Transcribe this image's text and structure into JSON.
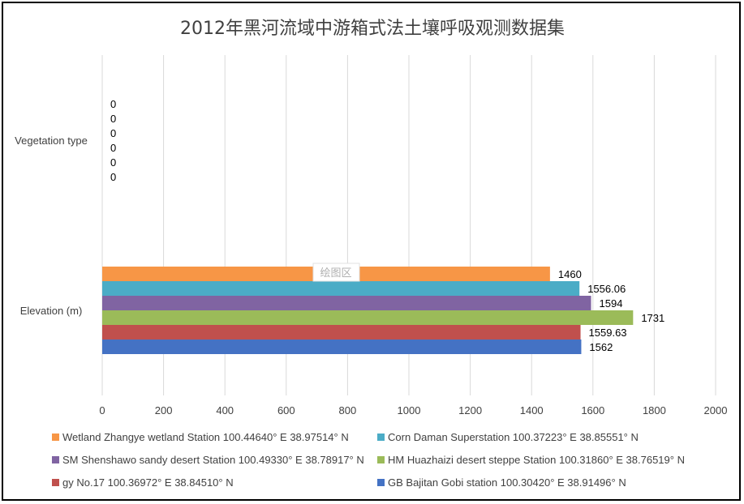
{
  "plot_area_tag": "绘图区",
  "chart_data": {
    "type": "bar",
    "orientation": "horizontal",
    "title": "2012年黑河流域中游箱式法土壤呼吸观测数据集",
    "categories": [
      "Elevation (m)",
      "Vegetation type"
    ],
    "xlim": [
      0,
      2000
    ],
    "xticks": [
      0,
      200,
      400,
      600,
      800,
      1000,
      1200,
      1400,
      1600,
      1800,
      2000
    ],
    "grid": true,
    "legend_position": "bottom",
    "series": [
      {
        "name": "GB Bajitan Gobi station 100.30420° E 38.91496° N",
        "color": "#4472C4",
        "values": [
          1562,
          0
        ],
        "labels": [
          "1562",
          "0"
        ]
      },
      {
        "name": "gy No.17 100.36972° E 38.84510° N",
        "color": "#C0504D",
        "values": [
          1559.63,
          0
        ],
        "labels": [
          "1559.63",
          "0"
        ]
      },
      {
        "name": "HM Huazhaizi desert steppe Station 100.31860° E 38.76519° N",
        "color": "#9BBB59",
        "values": [
          1731,
          0
        ],
        "labels": [
          "1731",
          "0"
        ]
      },
      {
        "name": "SM Shenshawo sandy desert Station 100.49330° E 38.78917° N",
        "color": "#8064A2",
        "values": [
          1594,
          0
        ],
        "labels": [
          "1594",
          "0"
        ]
      },
      {
        "name": "Corn Daman Superstation 100.37223° E 38.85551° N",
        "color": "#4BACC6",
        "values": [
          1556.06,
          0
        ],
        "labels": [
          "1556.06",
          "0"
        ]
      },
      {
        "name": "Wetland Zhangye wetland Station 100.44640° E 38.97514° N",
        "color": "#F79646",
        "values": [
          1460,
          0
        ],
        "labels": [
          "1460",
          "0"
        ]
      }
    ],
    "legend_order": [
      5,
      4,
      3,
      2,
      1,
      0
    ]
  }
}
